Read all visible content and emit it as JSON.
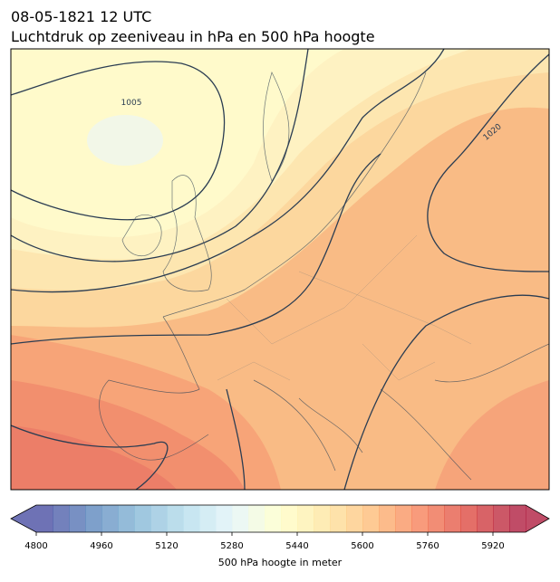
{
  "title": [
    "08-05-1821 12 UTC",
    "Luchtdruk op zeeniveau in hPa en 500 hPa hoogte"
  ],
  "contour_labels": [
    1005,
    1020
  ],
  "colorbar": {
    "label": "500 hPa hoogte in meter",
    "lim": [
      4800,
      6000
    ],
    "step": 40,
    "colormap": "RdYlBu_r",
    "ticks": [
      4800,
      4960,
      5120,
      5280,
      5440,
      5600,
      5760,
      5920
    ]
  }
}
